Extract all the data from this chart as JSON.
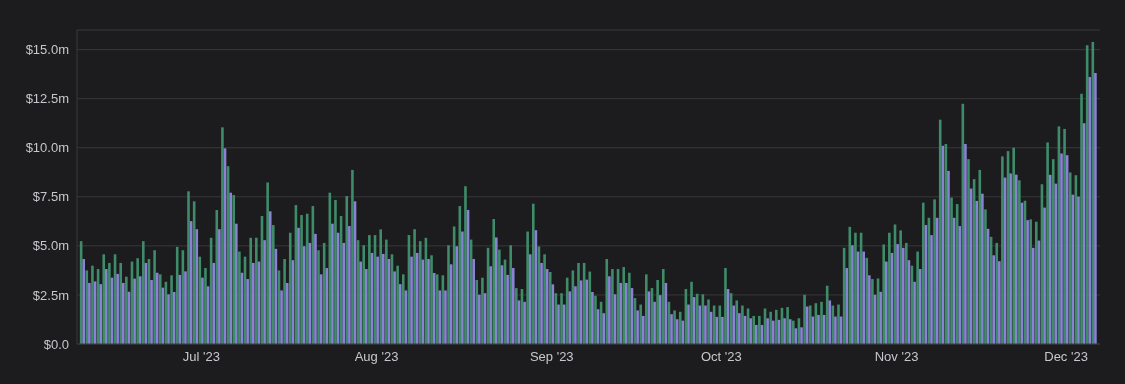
{
  "chart_data": {
    "type": "bar",
    "x": [
      "2023-06-10",
      "2023-06-11",
      "2023-06-12",
      "2023-06-13",
      "2023-06-14",
      "2023-06-15",
      "2023-06-16",
      "2023-06-17",
      "2023-06-18",
      "2023-06-19",
      "2023-06-20",
      "2023-06-21",
      "2023-06-22",
      "2023-06-23",
      "2023-06-24",
      "2023-06-25",
      "2023-06-26",
      "2023-06-27",
      "2023-06-28",
      "2023-06-29",
      "2023-06-30",
      "2023-07-01",
      "2023-07-02",
      "2023-07-03",
      "2023-07-04",
      "2023-07-05",
      "2023-07-06",
      "2023-07-07",
      "2023-07-08",
      "2023-07-09",
      "2023-07-10",
      "2023-07-11",
      "2023-07-12",
      "2023-07-13",
      "2023-07-14",
      "2023-07-15",
      "2023-07-16",
      "2023-07-17",
      "2023-07-18",
      "2023-07-19",
      "2023-07-20",
      "2023-07-21",
      "2023-07-22",
      "2023-07-23",
      "2023-07-24",
      "2023-07-25",
      "2023-07-26",
      "2023-07-27",
      "2023-07-28",
      "2023-07-29",
      "2023-07-30",
      "2023-07-31",
      "2023-08-01",
      "2023-08-02",
      "2023-08-03",
      "2023-08-04",
      "2023-08-05",
      "2023-08-06",
      "2023-08-07",
      "2023-08-08",
      "2023-08-09",
      "2023-08-10",
      "2023-08-11",
      "2023-08-12",
      "2023-08-13",
      "2023-08-14",
      "2023-08-15",
      "2023-08-16",
      "2023-08-17",
      "2023-08-18",
      "2023-08-19",
      "2023-08-20",
      "2023-08-21",
      "2023-08-22",
      "2023-08-23",
      "2023-08-24",
      "2023-08-25",
      "2023-08-26",
      "2023-08-27",
      "2023-08-28",
      "2023-08-29",
      "2023-08-30",
      "2023-08-31",
      "2023-09-01",
      "2023-09-02",
      "2023-09-03",
      "2023-09-04",
      "2023-09-05",
      "2023-09-06",
      "2023-09-07",
      "2023-09-08",
      "2023-09-09",
      "2023-09-10",
      "2023-09-11",
      "2023-09-12",
      "2023-09-13",
      "2023-09-14",
      "2023-09-15",
      "2023-09-16",
      "2023-09-17",
      "2023-09-18",
      "2023-09-19",
      "2023-09-20",
      "2023-09-21",
      "2023-09-22",
      "2023-09-23",
      "2023-09-24",
      "2023-09-25",
      "2023-09-26",
      "2023-09-27",
      "2023-09-28",
      "2023-09-29",
      "2023-09-30",
      "2023-10-01",
      "2023-10-02",
      "2023-10-03",
      "2023-10-04",
      "2023-10-05",
      "2023-10-06",
      "2023-10-07",
      "2023-10-08",
      "2023-10-09",
      "2023-10-10",
      "2023-10-11",
      "2023-10-12",
      "2023-10-13",
      "2023-10-14",
      "2023-10-15",
      "2023-10-16",
      "2023-10-17",
      "2023-10-18",
      "2023-10-19",
      "2023-10-20",
      "2023-10-21",
      "2023-10-22",
      "2023-10-23",
      "2023-10-24",
      "2023-10-25",
      "2023-10-26",
      "2023-10-27",
      "2023-10-28",
      "2023-10-29",
      "2023-10-30",
      "2023-10-31",
      "2023-11-01",
      "2023-11-02",
      "2023-11-03",
      "2023-11-04",
      "2023-11-05",
      "2023-11-06",
      "2023-11-07",
      "2023-11-08",
      "2023-11-09",
      "2023-11-10",
      "2023-11-11",
      "2023-11-12",
      "2023-11-13",
      "2023-11-14",
      "2023-11-15",
      "2023-11-16",
      "2023-11-17",
      "2023-11-18",
      "2023-11-19",
      "2023-11-20",
      "2023-11-21",
      "2023-11-22",
      "2023-11-23",
      "2023-11-24",
      "2023-11-25",
      "2023-11-26",
      "2023-11-27",
      "2023-11-28",
      "2023-11-29",
      "2023-11-30",
      "2023-12-01",
      "2023-12-02",
      "2023-12-03",
      "2023-12-04",
      "2023-12-05",
      "2023-12-06"
    ],
    "series": [
      {
        "color": "#3f8c6a",
        "values": [
          5.24,
          3.75,
          3.99,
          3.82,
          4.57,
          4.13,
          4.57,
          4.13,
          3.43,
          4.2,
          4.37,
          5.24,
          4.33,
          4.78,
          3.55,
          3.17,
          3.5,
          4.95,
          4.78,
          7.78,
          7.27,
          4.45,
          3.87,
          5.41,
          6.83,
          11.04,
          9.06,
          7.59,
          4.71,
          4.45,
          5.41,
          5.41,
          6.52,
          8.23,
          6.06,
          3.75,
          4.33,
          5.67,
          7.08,
          6.57,
          6.64,
          7.03,
          4.78,
          5.15,
          7.71,
          7.34,
          6.52,
          7.54,
          8.87,
          5.29,
          5.03,
          5.55,
          5.55,
          5.84,
          5.32,
          4.57,
          3.99,
          3.55,
          5.55,
          5.85,
          5.24,
          5.41,
          4.52,
          3.55,
          3.5,
          5.03,
          5.99,
          7.03,
          8.04,
          5.32,
          3.26,
          3.38,
          4.9,
          6.37,
          4.81,
          4.3,
          5.03,
          2.85,
          2.8,
          5.73,
          7.15,
          4.97,
          4.57,
          3.67,
          2.59,
          2.59,
          3.38,
          3.75,
          4.13,
          4.13,
          3.69,
          2.46,
          2.15,
          4.33,
          3.82,
          3.82,
          3.92,
          3.63,
          2.34,
          2.01,
          3.55,
          2.85,
          3.26,
          3.82,
          2.15,
          1.71,
          1.64,
          2.8,
          3.17,
          2.56,
          2.53,
          2.27,
          1.96,
          1.96,
          3.87,
          2.59,
          2.22,
          1.96,
          1.81,
          1.43,
          1.43,
          1.81,
          1.64,
          1.74,
          1.84,
          1.88,
          1.19,
          1.31,
          2.51,
          1.96,
          2.08,
          2.15,
          2.97,
          1.96,
          2.01,
          4.9,
          5.97,
          5.67,
          5.67,
          4.39,
          3.31,
          3.34,
          5.07,
          5.67,
          6.09,
          5.79,
          5.15,
          3.99,
          4.71,
          7.2,
          6.43,
          7.37,
          11.43,
          10.19,
          7.46,
          7.13,
          12.24,
          9.42,
          8.4,
          8.87,
          6.86,
          5.46,
          5.15,
          9.56,
          9.83,
          10.0,
          8.34,
          7.3,
          6.35,
          6.23,
          8.14,
          10.27,
          9.42,
          11.09,
          10.96,
          8.74,
          8.6,
          12.75,
          15.22,
          15.39
        ]
      },
      {
        "color": "#8a83d4",
        "values": [
          4.33,
          3.11,
          3.19,
          3.05,
          3.82,
          3.38,
          3.57,
          3.11,
          2.66,
          3.33,
          3.45,
          4.13,
          3.26,
          3.63,
          2.87,
          2.53,
          2.65,
          3.52,
          3.7,
          6.26,
          5.85,
          3.38,
          2.94,
          4.13,
          5.85,
          9.97,
          7.71,
          6.13,
          3.63,
          3.31,
          4.13,
          4.2,
          5.29,
          6.76,
          4.85,
          2.73,
          3.11,
          4.27,
          5.92,
          4.98,
          5.15,
          5.61,
          3.55,
          3.87,
          6.13,
          5.67,
          5.15,
          6.01,
          7.27,
          4.2,
          3.82,
          4.64,
          4.45,
          4.59,
          4.33,
          3.7,
          3.05,
          2.73,
          4.45,
          4.64,
          4.3,
          4.33,
          3.62,
          2.73,
          2.73,
          4.06,
          4.98,
          5.73,
          6.83,
          4.33,
          2.51,
          2.59,
          3.96,
          5.43,
          4.01,
          3.52,
          3.87,
          2.22,
          2.15,
          4.57,
          5.8,
          4.13,
          3.82,
          3.04,
          2.01,
          2.01,
          2.68,
          2.94,
          3.24,
          3.28,
          2.65,
          1.77,
          1.57,
          3.45,
          2.53,
          3.11,
          3.11,
          2.85,
          1.71,
          1.43,
          2.68,
          2.15,
          2.49,
          3.11,
          1.52,
          1.26,
          1.19,
          2.01,
          2.39,
          1.96,
          1.96,
          1.64,
          1.38,
          1.38,
          2.8,
          1.96,
          1.57,
          1.43,
          1.31,
          0.97,
          0.97,
          1.31,
          1.19,
          1.23,
          1.31,
          1.26,
          0.8,
          0.85,
          1.91,
          1.4,
          1.48,
          1.48,
          2.22,
          1.4,
          1.4,
          3.87,
          5.03,
          4.71,
          4.71,
          3.5,
          2.51,
          2.66,
          4.2,
          4.64,
          5.09,
          4.9,
          4.27,
          3.17,
          3.82,
          6.06,
          5.55,
          6.43,
          10.1,
          8.82,
          6.43,
          6.01,
          10.19,
          7.92,
          7.29,
          7.66,
          5.87,
          4.52,
          4.22,
          8.48,
          8.69,
          8.63,
          7.2,
          6.31,
          4.9,
          5.27,
          6.95,
          8.62,
          8.17,
          9.71,
          9.62,
          7.61,
          7.51,
          11.25,
          13.6,
          13.81
        ]
      }
    ],
    "xlim": [
      "2023-06-09",
      "2023-12-07"
    ],
    "xticks": [
      {
        "value": "2023-07-01",
        "label": "Jul '23"
      },
      {
        "value": "2023-08-01",
        "label": "Aug '23"
      },
      {
        "value": "2023-09-01",
        "label": "Sep '23"
      },
      {
        "value": "2023-10-01",
        "label": "Oct '23"
      },
      {
        "value": "2023-11-01",
        "label": "Nov '23"
      },
      {
        "value": "2023-12-01",
        "label": "Dec '23"
      }
    ],
    "ylim": [
      0,
      16
    ],
    "yticks": [
      {
        "value": 0,
        "label": "$0.0"
      },
      {
        "value": 2.5,
        "label": "$2.5m"
      },
      {
        "value": 5,
        "label": "$5.0m"
      },
      {
        "value": 7.5,
        "label": "$7.5m"
      },
      {
        "value": 10,
        "label": "$10.0m"
      },
      {
        "value": 12.5,
        "label": "$12.5m"
      },
      {
        "value": 15,
        "label": "$15.0m"
      }
    ],
    "grid": "y"
  }
}
